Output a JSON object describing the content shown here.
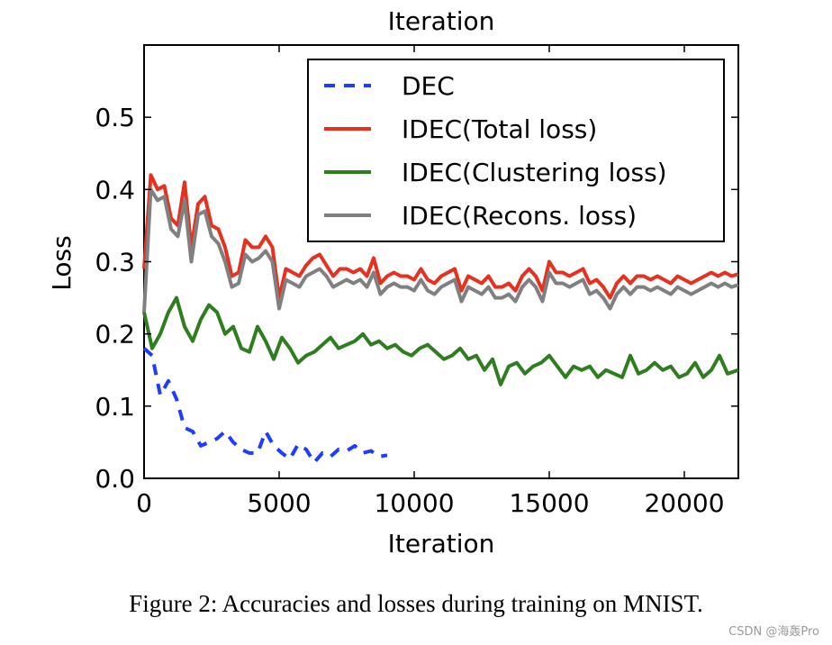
{
  "chart_data": {
    "type": "line",
    "title": "Iteration",
    "xlabel": "Iteration",
    "ylabel": "Loss",
    "xlim": [
      0,
      22000
    ],
    "ylim": [
      0,
      0.6
    ],
    "xticks": [
      0,
      5000,
      10000,
      15000,
      20000
    ],
    "yticks": [
      0.0,
      0.1,
      0.2,
      0.3,
      0.4,
      0.5
    ],
    "xtick_labels": [
      "0",
      "5000",
      "10000",
      "15000",
      "20000"
    ],
    "ytick_labels": [
      "0.0",
      "0.1",
      "0.2",
      "0.3",
      "0.4",
      "0.5"
    ],
    "grid": false,
    "legend_position": "top-right",
    "series": [
      {
        "name": "DEC",
        "color": "#1f3cff",
        "style": "dashed",
        "x": [
          0,
          300,
          600,
          900,
          1200,
          1500,
          1800,
          2100,
          2400,
          2700,
          3000,
          3300,
          3600,
          3900,
          4200,
          4500,
          4800,
          5100,
          5400,
          5700,
          6000,
          6300,
          6600,
          6900,
          7200,
          7500,
          7800,
          8100,
          8400,
          8700,
          9000
        ],
        "y": [
          0.18,
          0.17,
          0.115,
          0.135,
          0.11,
          0.07,
          0.065,
          0.045,
          0.05,
          0.055,
          0.065,
          0.05,
          0.04,
          0.035,
          0.035,
          0.065,
          0.045,
          0.035,
          0.027,
          0.047,
          0.04,
          0.022,
          0.035,
          0.03,
          0.04,
          0.038,
          0.045,
          0.035,
          0.038,
          0.03,
          0.032
        ]
      },
      {
        "name": "IDEC(Total loss)",
        "color": "#e8301e",
        "style": "solid",
        "x": [
          0,
          250,
          500,
          750,
          1000,
          1250,
          1500,
          1750,
          2000,
          2250,
          2500,
          2750,
          3000,
          3250,
          3500,
          3750,
          4000,
          4250,
          4500,
          4750,
          5000,
          5250,
          5500,
          5750,
          6000,
          6250,
          6500,
          6750,
          7000,
          7250,
          7500,
          7750,
          8000,
          8250,
          8500,
          8750,
          9000,
          9250,
          9500,
          9750,
          10000,
          10250,
          10500,
          10750,
          11000,
          11250,
          11500,
          11750,
          12000,
          12250,
          12500,
          12750,
          13000,
          13250,
          13500,
          13750,
          14000,
          14250,
          14500,
          14750,
          15000,
          15250,
          15500,
          15750,
          16000,
          16250,
          16500,
          16750,
          17000,
          17250,
          17500,
          17750,
          18000,
          18250,
          18500,
          18750,
          19000,
          19250,
          19500,
          19750,
          20000,
          20250,
          20500,
          20750,
          21000,
          21250,
          21500,
          21750,
          22000
        ],
        "y": [
          0.29,
          0.42,
          0.4,
          0.405,
          0.36,
          0.35,
          0.41,
          0.32,
          0.38,
          0.39,
          0.35,
          0.345,
          0.32,
          0.28,
          0.285,
          0.33,
          0.32,
          0.32,
          0.335,
          0.32,
          0.25,
          0.29,
          0.285,
          0.28,
          0.295,
          0.305,
          0.31,
          0.295,
          0.28,
          0.29,
          0.29,
          0.285,
          0.29,
          0.28,
          0.305,
          0.27,
          0.28,
          0.285,
          0.28,
          0.28,
          0.275,
          0.29,
          0.275,
          0.27,
          0.28,
          0.285,
          0.29,
          0.26,
          0.28,
          0.275,
          0.27,
          0.28,
          0.265,
          0.265,
          0.27,
          0.26,
          0.28,
          0.29,
          0.28,
          0.26,
          0.3,
          0.285,
          0.285,
          0.28,
          0.285,
          0.29,
          0.27,
          0.275,
          0.265,
          0.25,
          0.27,
          0.28,
          0.27,
          0.28,
          0.28,
          0.275,
          0.28,
          0.275,
          0.27,
          0.28,
          0.275,
          0.27,
          0.275,
          0.28,
          0.285,
          0.28,
          0.285,
          0.28,
          0.283
        ]
      },
      {
        "name": "IDEC(Clustering loss)",
        "color": "#2e7d1f",
        "style": "solid",
        "x": [
          0,
          300,
          600,
          900,
          1200,
          1500,
          1800,
          2100,
          2400,
          2700,
          3000,
          3300,
          3600,
          3900,
          4200,
          4500,
          4800,
          5100,
          5400,
          5700,
          6000,
          6300,
          6600,
          6900,
          7200,
          7500,
          7800,
          8100,
          8400,
          8700,
          9000,
          9300,
          9600,
          9900,
          10200,
          10500,
          10800,
          11100,
          11400,
          11700,
          12000,
          12300,
          12600,
          12900,
          13200,
          13500,
          13800,
          14100,
          14400,
          14700,
          15000,
          15300,
          15600,
          15900,
          16200,
          16500,
          16800,
          17100,
          17400,
          17700,
          18000,
          18300,
          18600,
          18900,
          19200,
          19500,
          19800,
          20100,
          20400,
          20700,
          21000,
          21300,
          21600,
          22000
        ],
        "y": [
          0.23,
          0.18,
          0.2,
          0.23,
          0.25,
          0.21,
          0.19,
          0.22,
          0.24,
          0.23,
          0.2,
          0.21,
          0.18,
          0.175,
          0.21,
          0.19,
          0.165,
          0.195,
          0.18,
          0.16,
          0.17,
          0.175,
          0.185,
          0.195,
          0.18,
          0.185,
          0.19,
          0.2,
          0.185,
          0.19,
          0.18,
          0.185,
          0.175,
          0.17,
          0.18,
          0.185,
          0.175,
          0.165,
          0.17,
          0.18,
          0.165,
          0.17,
          0.15,
          0.165,
          0.13,
          0.155,
          0.16,
          0.145,
          0.155,
          0.16,
          0.17,
          0.155,
          0.14,
          0.155,
          0.15,
          0.155,
          0.14,
          0.15,
          0.145,
          0.14,
          0.17,
          0.145,
          0.15,
          0.16,
          0.15,
          0.155,
          0.14,
          0.145,
          0.16,
          0.14,
          0.15,
          0.17,
          0.145,
          0.15
        ]
      },
      {
        "name": "IDEC(Recons. loss)",
        "color": "#808080",
        "style": "solid",
        "x": [
          0,
          250,
          500,
          750,
          1000,
          1250,
          1500,
          1750,
          2000,
          2250,
          2500,
          2750,
          3000,
          3250,
          3500,
          3750,
          4000,
          4250,
          4500,
          4750,
          5000,
          5250,
          5500,
          5750,
          6000,
          6250,
          6500,
          6750,
          7000,
          7250,
          7500,
          7750,
          8000,
          8250,
          8500,
          8750,
          9000,
          9250,
          9500,
          9750,
          10000,
          10250,
          10500,
          10750,
          11000,
          11250,
          11500,
          11750,
          12000,
          12250,
          12500,
          12750,
          13000,
          13250,
          13500,
          13750,
          14000,
          14250,
          14500,
          14750,
          15000,
          15250,
          15500,
          15750,
          16000,
          16250,
          16500,
          16750,
          17000,
          17250,
          17500,
          17750,
          18000,
          18250,
          18500,
          18750,
          19000,
          19250,
          19500,
          19750,
          20000,
          20250,
          20500,
          20750,
          21000,
          21250,
          21500,
          21750,
          22000
        ],
        "y": [
          0.23,
          0.4,
          0.385,
          0.39,
          0.345,
          0.335,
          0.385,
          0.3,
          0.365,
          0.37,
          0.335,
          0.325,
          0.3,
          0.265,
          0.27,
          0.31,
          0.3,
          0.305,
          0.315,
          0.3,
          0.235,
          0.275,
          0.27,
          0.265,
          0.28,
          0.285,
          0.29,
          0.28,
          0.265,
          0.27,
          0.275,
          0.27,
          0.275,
          0.265,
          0.285,
          0.255,
          0.265,
          0.27,
          0.265,
          0.265,
          0.26,
          0.275,
          0.26,
          0.255,
          0.265,
          0.27,
          0.275,
          0.245,
          0.265,
          0.26,
          0.255,
          0.265,
          0.25,
          0.25,
          0.255,
          0.245,
          0.265,
          0.275,
          0.265,
          0.245,
          0.285,
          0.27,
          0.27,
          0.265,
          0.27,
          0.275,
          0.255,
          0.26,
          0.25,
          0.235,
          0.255,
          0.265,
          0.255,
          0.265,
          0.265,
          0.26,
          0.265,
          0.26,
          0.255,
          0.265,
          0.26,
          0.255,
          0.26,
          0.265,
          0.27,
          0.265,
          0.27,
          0.265,
          0.268
        ]
      }
    ]
  },
  "caption": "Figure 2: Accuracies and losses during training on MNIST.",
  "watermark": "CSDN @海轰Pro"
}
